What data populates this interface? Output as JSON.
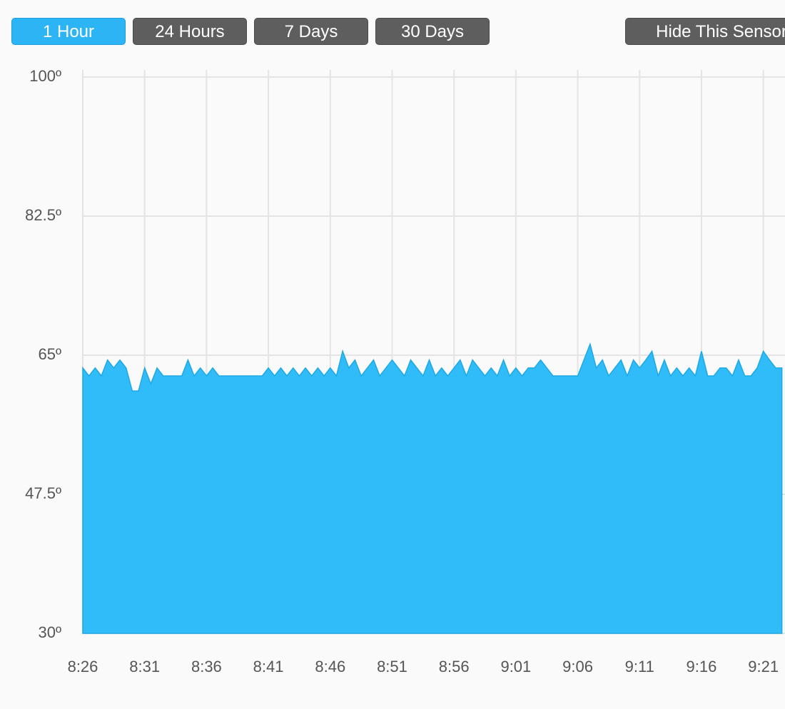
{
  "buttons": [
    "1 Hour",
    "24 Hours",
    "7 Days",
    "30 Days",
    "Hide This Sensor"
  ],
  "chart_data": {
    "type": "area",
    "color": "#30bcf8",
    "grid": true,
    "x": [
      506,
      506.5,
      507,
      507.5,
      508,
      508.5,
      509,
      509.5,
      510,
      510.5,
      511,
      511.5,
      512,
      512.5,
      513,
      513.5,
      514,
      514.5,
      515,
      515.5,
      516,
      516.5,
      517,
      517.5,
      518,
      518.5,
      519,
      519.5,
      520,
      520.5,
      521,
      521.5,
      522,
      522.5,
      523,
      523.5,
      524,
      524.5,
      525,
      525.5,
      526,
      526.5,
      527,
      527.5,
      528,
      528.5,
      529,
      529.5,
      530,
      530.5,
      531,
      531.5,
      532,
      532.5,
      533,
      533.5,
      534,
      534.5,
      535,
      535.5,
      536,
      536.5,
      537,
      537.5,
      538,
      538.5,
      539,
      539.5,
      540,
      540.5,
      541,
      541.5,
      542,
      542.5,
      543,
      543.5,
      544,
      544.5,
      545,
      545.5,
      546,
      546.5,
      547,
      547.5,
      548,
      548.5,
      549,
      549.5,
      550,
      550.5,
      551,
      551.5,
      552,
      552.5,
      553,
      553.5,
      554,
      554.5,
      555,
      555.5,
      556,
      556.5,
      557,
      557.5,
      558,
      558.5,
      559,
      559.5,
      560,
      560.5,
      561,
      561.5,
      562,
      562.5
    ],
    "values": [
      63.4,
      62.4,
      63.4,
      62.4,
      64.4,
      63.4,
      64.4,
      63.4,
      60.5,
      60.5,
      63.4,
      61.4,
      63.4,
      62.4,
      62.4,
      62.4,
      62.4,
      64.4,
      62.4,
      63.4,
      62.4,
      63.4,
      62.4,
      62.4,
      62.4,
      62.4,
      62.4,
      62.4,
      62.4,
      62.4,
      63.4,
      62.4,
      63.4,
      62.4,
      63.4,
      62.4,
      63.4,
      62.4,
      63.4,
      62.4,
      63.4,
      62.4,
      65.5,
      63.4,
      64.4,
      62.4,
      63.4,
      64.4,
      62.4,
      63.4,
      64.4,
      63.4,
      62.4,
      64.4,
      63.4,
      62.4,
      64.4,
      62.4,
      63.4,
      62.4,
      63.4,
      64.4,
      62.4,
      64.4,
      63.4,
      62.4,
      63.4,
      62.4,
      64.4,
      62.4,
      63.4,
      62.4,
      63.4,
      63.4,
      64.4,
      63.4,
      62.4,
      62.4,
      62.4,
      62.4,
      62.4,
      64.4,
      66.4,
      63.4,
      64.4,
      62.4,
      63.4,
      64.4,
      62.4,
      64.4,
      63.4,
      64.4,
      65.5,
      62.4,
      64.4,
      62.4,
      63.4,
      62.4,
      63.4,
      62.4,
      65.5,
      62.4,
      62.4,
      63.4,
      63.4,
      62.4,
      64.4,
      62.4,
      62.4,
      63.4,
      65.5,
      64.4,
      63.4,
      63.4
    ],
    "xlim": [
      506,
      562.75
    ],
    "ylim": [
      30,
      100
    ],
    "xticks": [
      {
        "value": 506,
        "label": "8:26"
      },
      {
        "value": 511,
        "label": "8:31"
      },
      {
        "value": 516,
        "label": "8:36"
      },
      {
        "value": 521,
        "label": "8:41"
      },
      {
        "value": 526,
        "label": "8:46"
      },
      {
        "value": 531,
        "label": "8:51"
      },
      {
        "value": 536,
        "label": "8:56"
      },
      {
        "value": 541,
        "label": "9:01"
      },
      {
        "value": 546,
        "label": "9:06"
      },
      {
        "value": 551,
        "label": "9:11"
      },
      {
        "value": 556,
        "label": "9:16"
      },
      {
        "value": 561,
        "label": "9:21"
      }
    ],
    "yticks": [
      {
        "value": 30,
        "label": "30º"
      },
      {
        "value": 47.5,
        "label": "47.5º"
      },
      {
        "value": 65,
        "label": "65º"
      },
      {
        "value": 82.5,
        "label": "82.5º"
      },
      {
        "value": 100,
        "label": "100º"
      }
    ]
  }
}
